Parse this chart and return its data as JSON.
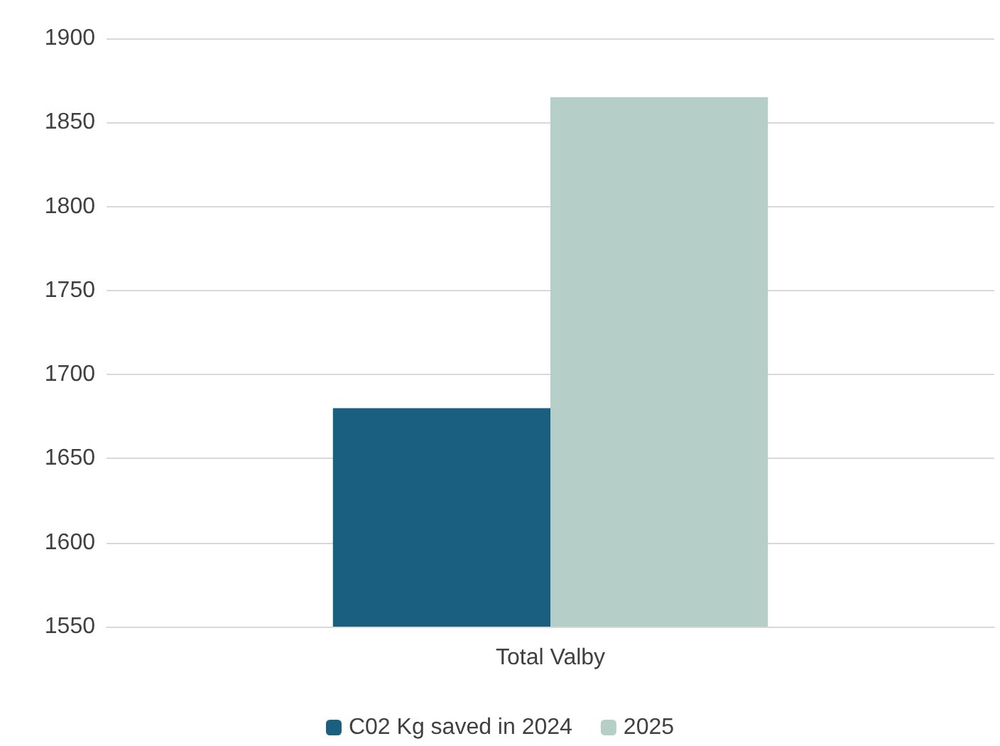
{
  "chart_data": {
    "type": "bar",
    "categories": [
      "Total Valby"
    ],
    "series": [
      {
        "name": "C02 Kg saved in 2024",
        "color": "#1a5f80",
        "values": [
          1680
        ]
      },
      {
        "name": "2025",
        "color": "#b5cfc8",
        "values": [
          1865
        ]
      }
    ],
    "ylim": [
      1550,
      1900
    ],
    "yticks": [
      1550,
      1600,
      1650,
      1700,
      1750,
      1800,
      1850,
      1900
    ],
    "grid": "y",
    "legend": "bottom"
  }
}
